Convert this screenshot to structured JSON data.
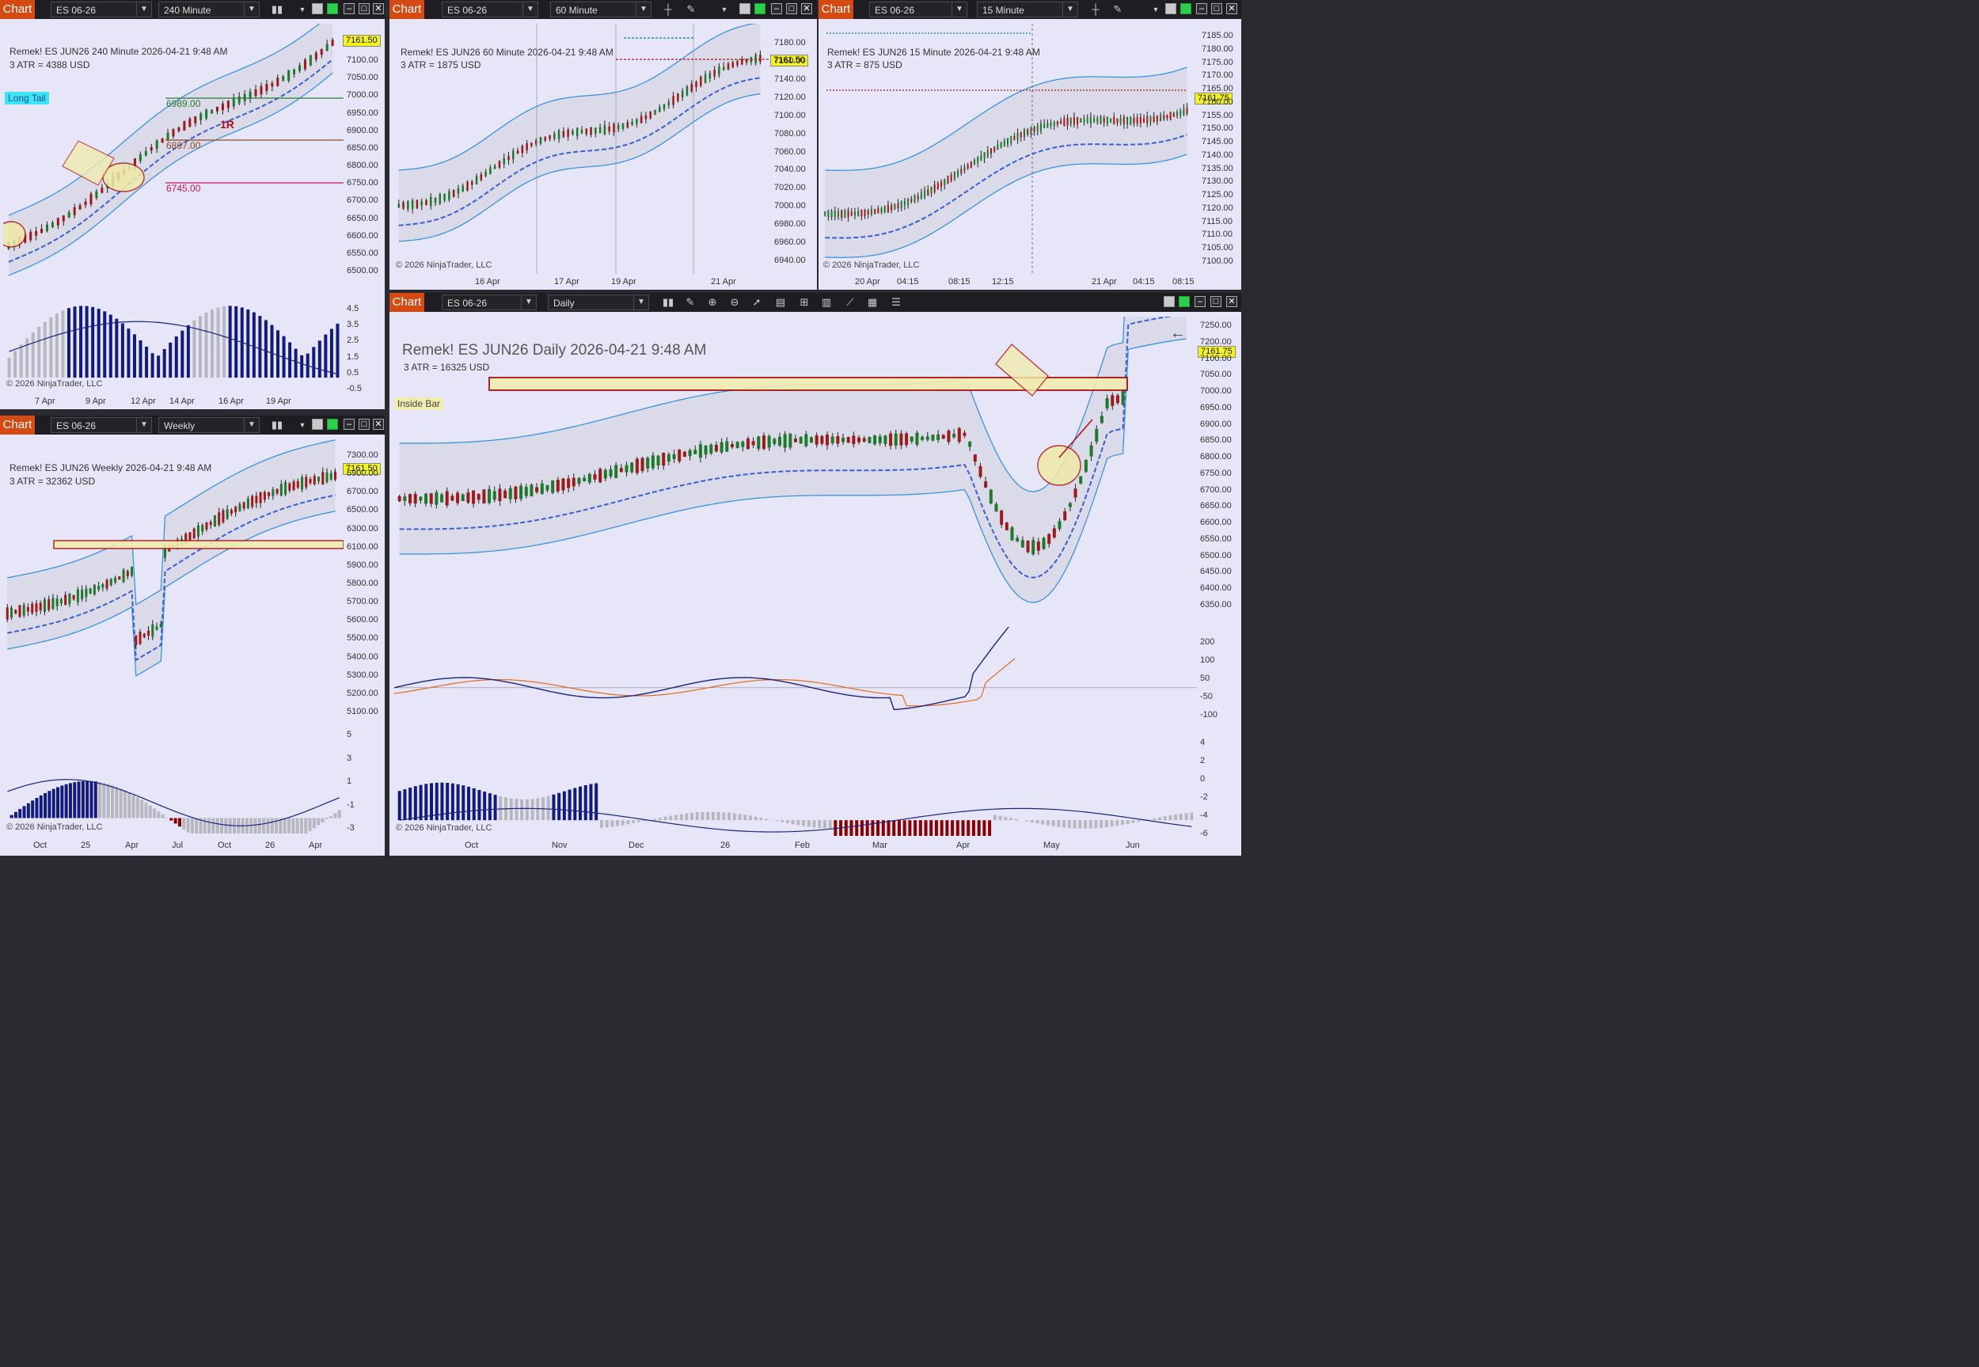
{
  "common": {
    "chart_tab": "Chart",
    "instrument": "ES 06-26",
    "copyright": "© 2026 NinjaTrader, LLC",
    "last_price": "7161.50"
  },
  "w240": {
    "timeframe": "240 Minute",
    "title": "Remek!  ES JUN26  240 Minute  2026-04-21 9:48 AM",
    "atr": "3 ATR = 4388 USD",
    "badge": "Long Tail",
    "level_1": "6989.00",
    "level_2": "6867.00",
    "level_3": "6745.00",
    "r_label": "1R",
    "y_ticks": [
      "7100.00",
      "7050.00",
      "7000.00",
      "6950.00",
      "6900.00",
      "6850.00",
      "6800.00",
      "6750.00",
      "6700.00",
      "6650.00",
      "6600.00",
      "6550.00",
      "6500.00"
    ],
    "osc_ticks": [
      "4.5",
      "3.5",
      "2.5",
      "1.5",
      "0.5",
      "-0.5"
    ],
    "x_ticks": [
      "7 Apr",
      "9 Apr",
      "12 Apr",
      "14 Apr",
      "16 Apr",
      "19 Apr"
    ]
  },
  "w60": {
    "timeframe": "60 Minute",
    "title": "Remek!  ES JUN26  60 Minute  2026-04-21 9:48 AM",
    "atr": "3 ATR = 1875 USD",
    "y_ticks": [
      "7180.00",
      "7160.00",
      "7140.00",
      "7120.00",
      "7100.00",
      "7080.00",
      "7060.00",
      "7040.00",
      "7020.00",
      "7000.00",
      "6980.00",
      "6960.00",
      "6940.00"
    ],
    "x_ticks": [
      "16 Apr",
      "17 Apr",
      "19 Apr",
      "21 Apr"
    ]
  },
  "w15": {
    "timeframe": "15 Minute",
    "title": "Remek!  ES JUN26  15 Minute  2026-04-21 9:48 AM",
    "atr": "3 ATR = 875 USD",
    "last_price": "7161.75",
    "y_ticks": [
      "7185.00",
      "7180.00",
      "7175.00",
      "7170.00",
      "7165.00",
      "7160.00",
      "7155.00",
      "7150.00",
      "7145.00",
      "7140.00",
      "7135.00",
      "7130.00",
      "7125.00",
      "7120.00",
      "7115.00",
      "7110.00",
      "7105.00",
      "7100.00"
    ],
    "x_ticks": [
      "20 Apr",
      "04:15",
      "08:15",
      "12:15",
      "21 Apr",
      "04:15",
      "08:15"
    ]
  },
  "wWeekly": {
    "timeframe": "Weekly",
    "title": "Remek!  ES JUN26  Weekly  2026-04-21 9:48 AM",
    "atr": "3 ATR = 32362 USD",
    "y_ticks": [
      "7300.00",
      "6900.00",
      "6700.00",
      "6500.00",
      "6300.00",
      "6100.00",
      "5900.00",
      "5800.00",
      "5700.00",
      "5600.00",
      "5500.00",
      "5400.00",
      "5300.00",
      "5200.00",
      "5100.00"
    ],
    "osc_ticks": [
      "5",
      "3",
      "1",
      "-1",
      "-3"
    ],
    "x_ticks": [
      "Oct",
      "25",
      "Apr",
      "Jul",
      "Oct",
      "26",
      "Apr"
    ]
  },
  "wDaily": {
    "timeframe": "Daily",
    "title": "Remek!  ES JUN26  Daily  2026-04-21 9:48 AM",
    "atr": "3 ATR = 16325 USD",
    "badge": "Inside Bar",
    "last_price": "7161.75",
    "y_ticks": [
      "7250.00",
      "7200.00",
      "7100.00",
      "7050.00",
      "7000.00",
      "6950.00",
      "6900.00",
      "6850.00",
      "6800.00",
      "6750.00",
      "6700.00",
      "6650.00",
      "6600.00",
      "6550.00",
      "6500.00",
      "6450.00",
      "6400.00",
      "6350.00"
    ],
    "osc1_ticks": [
      "200",
      "100",
      "50",
      "-50",
      "-100"
    ],
    "osc2_ticks": [
      "4",
      "2",
      "0",
      "-2",
      "-4",
      "-6"
    ],
    "x_ticks": [
      "Oct",
      "Nov",
      "Dec",
      "26",
      "Feb",
      "Mar",
      "Apr",
      "May",
      "Jun"
    ]
  },
  "colors": {
    "chart_bg": "#e6e6f8",
    "accent": "#d54a12",
    "toolbar": "#1e1e22",
    "up_candle": "#1d7a2c",
    "down_candle": "#9e1a1a",
    "band": "#2c8fe0",
    "mid_band": "#3a5fd4",
    "pricetag": "#f4f41c"
  },
  "icons": {
    "bars": "bar-type-icon",
    "draw": "pencil-icon",
    "zoom_in": "zoom-in-icon",
    "zoom_out": "zoom-out-icon",
    "cursor": "cursor-icon",
    "back_arrow": "back-arrow-icon"
  }
}
